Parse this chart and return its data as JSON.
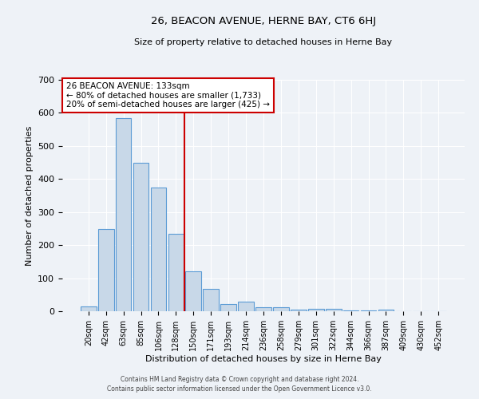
{
  "title": "26, BEACON AVENUE, HERNE BAY, CT6 6HJ",
  "subtitle": "Size of property relative to detached houses in Herne Bay",
  "xlabel": "Distribution of detached houses by size in Herne Bay",
  "ylabel": "Number of detached properties",
  "bar_labels": [
    "20sqm",
    "42sqm",
    "63sqm",
    "85sqm",
    "106sqm",
    "128sqm",
    "150sqm",
    "171sqm",
    "193sqm",
    "214sqm",
    "236sqm",
    "258sqm",
    "279sqm",
    "301sqm",
    "322sqm",
    "344sqm",
    "366sqm",
    "387sqm",
    "409sqm",
    "430sqm",
    "452sqm"
  ],
  "bar_values": [
    15,
    248,
    585,
    450,
    375,
    235,
    120,
    68,
    22,
    30,
    12,
    12,
    5,
    8,
    8,
    2,
    2,
    6,
    1,
    1,
    1
  ],
  "bar_color": "#c8d8e8",
  "bar_edge_color": "#5b9bd5",
  "vline_x": 5.5,
  "vline_color": "#cc0000",
  "annotation_text": "26 BEACON AVENUE: 133sqm\n← 80% of detached houses are smaller (1,733)\n20% of semi-detached houses are larger (425) →",
  "annotation_box_color": "#ffffff",
  "annotation_box_edge_color": "#cc0000",
  "ylim": [
    0,
    700
  ],
  "background_color": "#eef2f7",
  "grid_color": "#ffffff",
  "footer1": "Contains HM Land Registry data © Crown copyright and database right 2024.",
  "footer2": "Contains public sector information licensed under the Open Government Licence v3.0."
}
